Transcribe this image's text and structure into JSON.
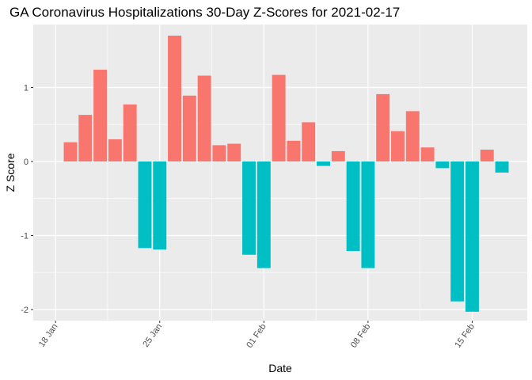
{
  "chart_data": {
    "type": "bar",
    "title": "GA Coronavirus Hospitalizations 30-Day Z-Scores for 2021-02-17",
    "xlabel": "Date",
    "ylabel": "Z Score",
    "ylim": [
      -2.15,
      1.85
    ],
    "y_ticks": [
      {
        "value": -2,
        "label": "-2"
      },
      {
        "value": -1,
        "label": "-1"
      },
      {
        "value": 0,
        "label": "0"
      },
      {
        "value": 1,
        "label": "1"
      }
    ],
    "x_range_days": [
      -1.5,
      31.7
    ],
    "x_ticks": [
      {
        "day": 0,
        "label": "18 Jan"
      },
      {
        "day": 7,
        "label": "25 Jan"
      },
      {
        "day": 14,
        "label": "01 Feb"
      },
      {
        "day": 21,
        "label": "08 Feb"
      },
      {
        "day": 28,
        "label": "15 Feb"
      }
    ],
    "x_day_origin": "18 Jan",
    "grid": true,
    "colors": {
      "positive": "#F8766D",
      "negative": "#00BFC4",
      "panel": "#EBEBEB",
      "grid": "#FFFFFF"
    },
    "bars": [
      {
        "day": 1,
        "value": 0.26
      },
      {
        "day": 2,
        "value": 0.63
      },
      {
        "day": 3,
        "value": 1.24
      },
      {
        "day": 4,
        "value": 0.3
      },
      {
        "day": 5,
        "value": 0.77
      },
      {
        "day": 6,
        "value": -1.17
      },
      {
        "day": 7,
        "value": -1.19
      },
      {
        "day": 8,
        "value": 1.7
      },
      {
        "day": 9,
        "value": 0.89
      },
      {
        "day": 10,
        "value": 1.16
      },
      {
        "day": 11,
        "value": 0.22
      },
      {
        "day": 12,
        "value": 0.24
      },
      {
        "day": 13,
        "value": -1.26
      },
      {
        "day": 14,
        "value": -1.44
      },
      {
        "day": 15,
        "value": 1.17
      },
      {
        "day": 16,
        "value": 0.28
      },
      {
        "day": 17,
        "value": 0.53
      },
      {
        "day": 18,
        "value": -0.06
      },
      {
        "day": 19,
        "value": 0.14
      },
      {
        "day": 20,
        "value": -1.21
      },
      {
        "day": 21,
        "value": -1.44
      },
      {
        "day": 22,
        "value": 0.91
      },
      {
        "day": 23,
        "value": 0.41
      },
      {
        "day": 24,
        "value": 0.68
      },
      {
        "day": 25,
        "value": 0.19
      },
      {
        "day": 26,
        "value": -0.09
      },
      {
        "day": 27,
        "value": -1.89
      },
      {
        "day": 28,
        "value": -2.03
      },
      {
        "day": 29,
        "value": 0.16
      },
      {
        "day": 30,
        "value": -0.15
      }
    ]
  }
}
